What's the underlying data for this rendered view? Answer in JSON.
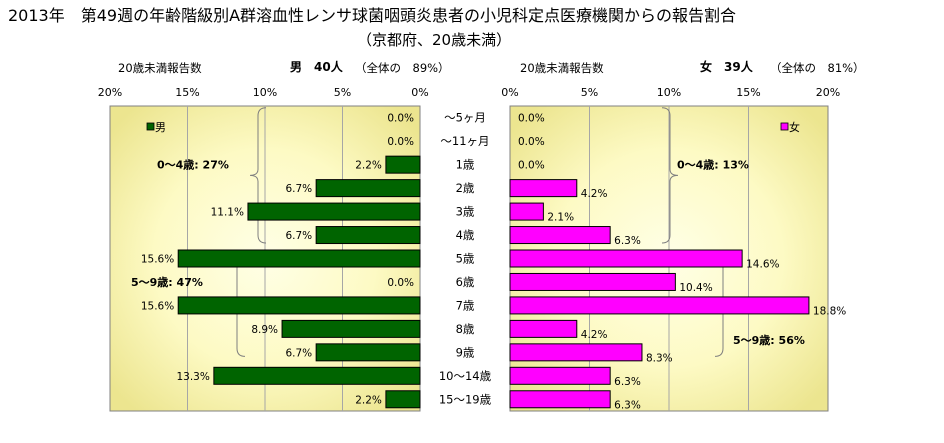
{
  "title": {
    "line1": "2013年　第49週の年齢階級別A群溶血性レンサ球菌咽頭炎患者の小児科定点医療機関からの報告割合",
    "line2": "（京都府、20歳未満）"
  },
  "panels": {
    "male": {
      "header_ratio_label": "20歳未満報告数",
      "header_count": "男　40人",
      "header_share": "（全体の　89%）"
    },
    "female": {
      "header_ratio_label": "20歳未満報告数",
      "header_count": "女　39人",
      "header_share": "（全体の　81%）"
    }
  },
  "chart_data": {
    "type": "bar",
    "categories": [
      "～5ヶ月",
      "～11ヶ月",
      "1歳",
      "2歳",
      "3歳",
      "4歳",
      "5歳",
      "6歳",
      "7歳",
      "8歳",
      "9歳",
      "10～14歳",
      "15～19歳"
    ],
    "series": [
      {
        "name": "男",
        "color": "#006400",
        "values": [
          0.0,
          0.0,
          2.2,
          6.7,
          11.1,
          6.7,
          15.6,
          0.0,
          15.6,
          8.9,
          6.7,
          13.3,
          2.2
        ],
        "labels": [
          "0.0%",
          "0.0%",
          "2.2%",
          "6.7%",
          "11.1%",
          "6.7%",
          "15.6%",
          "0.0%",
          "15.6%",
          "8.9%",
          "6.7%",
          "13.3%",
          "2.2%"
        ]
      },
      {
        "name": "女",
        "color": "#ff00ff",
        "values": [
          0.0,
          0.0,
          0.0,
          4.2,
          2.1,
          6.3,
          14.6,
          10.4,
          18.8,
          4.2,
          8.3,
          6.3,
          6.3
        ],
        "labels": [
          "0.0%",
          "0.0%",
          "0.0%",
          "4.2%",
          "2.1%",
          "6.3%",
          "14.6%",
          "10.4%",
          "18.8%",
          "4.2%",
          "8.3%",
          "6.3%",
          "6.3%"
        ]
      }
    ],
    "xlim": [
      0,
      20
    ],
    "axis_ticks": [
      "0%",
      "5%",
      "10%",
      "15%",
      "20%"
    ],
    "male_axis_ticks": [
      "20%",
      "15%",
      "10%",
      "5%",
      "0%"
    ],
    "grid": true,
    "annotations": {
      "male_0_4": "0～4歳:  27%",
      "male_5_9": "5～9歳:  47%",
      "female_0_4": "0～4歳:  13%",
      "female_5_9": "5～9歳:  56%"
    }
  }
}
